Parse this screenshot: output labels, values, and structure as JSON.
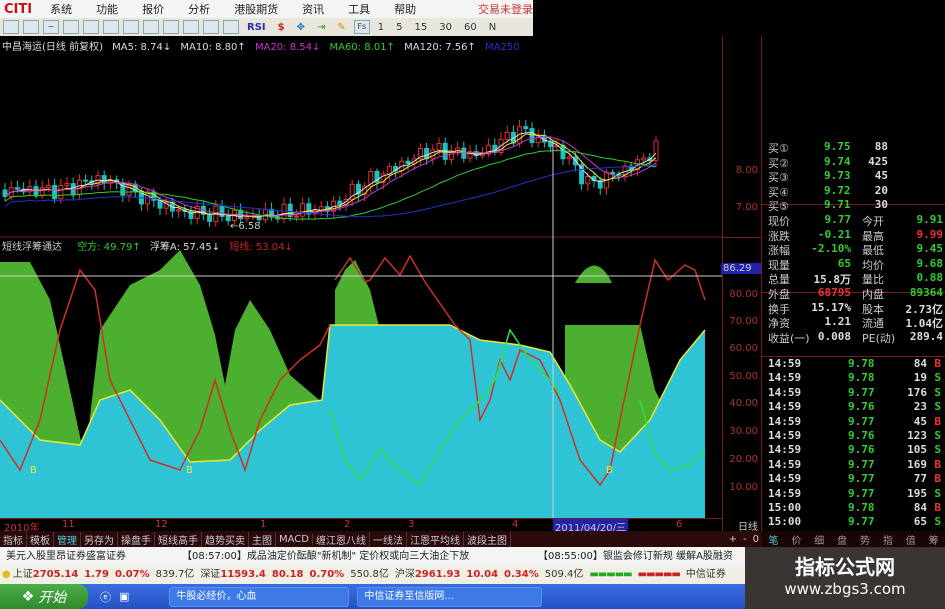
{
  "app": {
    "logo": "CITI",
    "login_status": "交易未登录"
  },
  "menu": [
    "系统",
    "功能",
    "报价",
    "分析",
    "港股期货",
    "资讯",
    "工具",
    "帮助"
  ],
  "toolbar": {
    "rsi": "RSI",
    "fs": "Fs",
    "periods": [
      "1",
      "5",
      "15",
      "30",
      "60",
      "N"
    ]
  },
  "ma_legend": {
    "title": "中昌海运(日线 前复权)",
    "ma5": "MA5: 8.74↓",
    "ma10": "MA10: 8.80↑",
    "ma20": "MA20: 8.54↓",
    "ma60": "MA60: 8.01↑",
    "ma120": "MA120: 7.56↑",
    "ma250": "MA250"
  },
  "price_axis": [
    "8.00",
    "7.00"
  ],
  "price_low_label": "←6.58",
  "indicator": {
    "name": "短线浮筹通达",
    "kong": "空方: 49.79↑",
    "fuchou": "浮筹A: 57.45↓",
    "duanxian": "短线: 53.04↓",
    "buy_marker": "B"
  },
  "indicator_axis": {
    "cursor": "86.29",
    "ticks": [
      "80.00",
      "70.00",
      "60.00",
      "50.00",
      "40.00",
      "30.00",
      "20.00",
      "10.00"
    ]
  },
  "time_axis": {
    "year": "2010年",
    "months": [
      "11",
      "12",
      "1",
      "2",
      "3",
      "4",
      "6"
    ],
    "cursor_date": "2011/04/20/三",
    "period": "日线"
  },
  "colors": {
    "up": "#e03030",
    "down": "#20c0c0",
    "fill_cyan": "#2ec4d6",
    "fill_green": "#4caf30",
    "line_red": "#d03020",
    "line_green": "#30e040",
    "line_yellow": "#e8e830"
  },
  "quote": {
    "bids": [
      {
        "label": "买①",
        "price": "9.75",
        "vol": "88"
      },
      {
        "label": "买②",
        "price": "9.74",
        "vol": "425"
      },
      {
        "label": "买③",
        "price": "9.73",
        "vol": "45"
      },
      {
        "label": "买④",
        "price": "9.72",
        "vol": "20"
      },
      {
        "label": "买⑤",
        "price": "9.71",
        "vol": "30"
      }
    ],
    "stats": [
      {
        "l1": "现价",
        "v1": "9.77",
        "c1": "g",
        "l2": "今开",
        "v2": "9.91",
        "c2": "g"
      },
      {
        "l1": "涨跌",
        "v1": "-0.21",
        "c1": "g",
        "l2": "最高",
        "v2": "9.99",
        "c2": "r"
      },
      {
        "l1": "涨幅",
        "v1": "-2.10%",
        "c1": "g",
        "l2": "最低",
        "v2": "9.45",
        "c2": "g"
      },
      {
        "l1": "现量",
        "v1": "65",
        "c1": "g",
        "l2": "均价",
        "v2": "9.68",
        "c2": "g"
      },
      {
        "l1": "总量",
        "v1": "15.8万",
        "c1": "w",
        "l2": "量比",
        "v2": "0.88",
        "c2": "g"
      },
      {
        "l1": "外盘",
        "v1": "68795",
        "c1": "r",
        "l2": "内盘",
        "v2": "89364",
        "c2": "g"
      },
      {
        "l1": "换手",
        "v1": "15.17%",
        "c1": "w",
        "l2": "股本",
        "v2": "2.73亿",
        "c2": "w"
      },
      {
        "l1": "净资",
        "v1": "1.21",
        "c1": "w",
        "l2": "流通",
        "v2": "1.04亿",
        "c2": "w"
      },
      {
        "l1": "收益(一)",
        "v1": "0.008",
        "c1": "w",
        "l2": "PE(动)",
        "v2": "289.4",
        "c2": "w"
      }
    ],
    "ticks": [
      {
        "t": "14:59",
        "p": "9.78",
        "v": "84",
        "s": "B"
      },
      {
        "t": "14:59",
        "p": "9.78",
        "v": "19",
        "s": "S"
      },
      {
        "t": "14:59",
        "p": "9.77",
        "v": "176",
        "s": "S"
      },
      {
        "t": "14:59",
        "p": "9.76",
        "v": "23",
        "s": "S"
      },
      {
        "t": "14:59",
        "p": "9.77",
        "v": "45",
        "s": "B"
      },
      {
        "t": "14:59",
        "p": "9.76",
        "v": "123",
        "s": "S"
      },
      {
        "t": "14:59",
        "p": "9.76",
        "v": "105",
        "s": "S"
      },
      {
        "t": "14:59",
        "p": "9.77",
        "v": "169",
        "s": "B"
      },
      {
        "t": "14:59",
        "p": "9.77",
        "v": "77",
        "s": "B"
      },
      {
        "t": "14:59",
        "p": "9.77",
        "v": "195",
        "s": "S"
      },
      {
        "t": "15:00",
        "p": "9.78",
        "v": "84",
        "s": "B"
      },
      {
        "t": "15:00",
        "p": "9.77",
        "v": "65",
        "s": "S"
      }
    ]
  },
  "tabs": [
    "指标",
    "模板",
    "管理",
    "另存为",
    "操盘手",
    "短线高手",
    "趋势买卖",
    "主图",
    "MACD",
    "缠江恩八线",
    "一线法",
    "江恩平均线",
    "波段主图"
  ],
  "zoom_controls": [
    "+",
    "-",
    "0"
  ],
  "right_tabs": [
    "笔",
    "价",
    "细",
    "盘",
    "势",
    "指",
    "值",
    "筹"
  ],
  "news": [
    "美元入股里昂证券盛富证券",
    "【08:57:00】成品油定价酝酿\"新机制\" 定价权或向三大油企下放",
    "【08:55:00】银监会修订新规 缓解A股融资"
  ],
  "indices": [
    {
      "name": "上证",
      "value": "2705.14",
      "chg": "1.79",
      "pct": "0.07%",
      "amt": "839.7亿"
    },
    {
      "name": "深证",
      "value": "11593.4",
      "chg": "80.18",
      "pct": "0.70%",
      "amt": "550.8亿"
    },
    {
      "name": "沪深",
      "value": "2961.93",
      "chg": "10.04",
      "pct": "0.34%",
      "amt": "509.4亿"
    }
  ],
  "broker": "中信证券",
  "taskbar": {
    "start": "开始",
    "tasks": [
      "牛股必经价，心血",
      "中信证券至信版网..."
    ]
  },
  "watermark": {
    "title": "指标公式网",
    "url": "www.zbgs3.com"
  }
}
